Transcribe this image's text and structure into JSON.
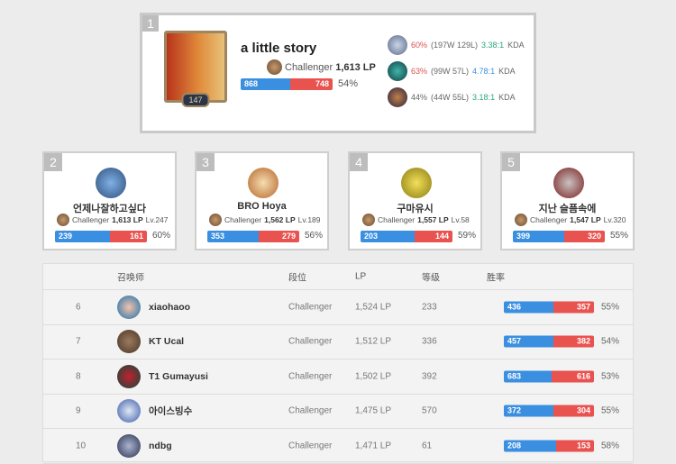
{
  "top": {
    "rank": "1",
    "name": "a little story",
    "level": "147",
    "tier": "Challenger",
    "lp": "1,613 LP",
    "wins": 868,
    "losses": 748,
    "winrate": "54%",
    "champions": [
      {
        "winrate": "60%",
        "record": "(197W 129L)",
        "kda": "3.38:1",
        "kda_label": "KDA",
        "wr_color": "#d9534f",
        "kda_color": "#2aa87a"
      },
      {
        "winrate": "63%",
        "record": "(99W 57L)",
        "kda": "4.78:1",
        "kda_label": "KDA",
        "wr_color": "#d9534f",
        "kda_color": "#3b8fe0"
      },
      {
        "winrate": "44%",
        "record": "(44W 55L)",
        "kda": "3.18:1",
        "kda_label": "KDA",
        "wr_color": "#666666",
        "kda_color": "#2aa87a"
      }
    ]
  },
  "cards": [
    {
      "rank": "2",
      "name": "언제나잘하고싶다",
      "tier": "Challenger",
      "lp": "1,613 LP",
      "level": "Lv.247",
      "wins": 239,
      "losses": 161,
      "winrate": "60%"
    },
    {
      "rank": "3",
      "name": "BRO Hoya",
      "tier": "Challenger",
      "lp": "1,562 LP",
      "level": "Lv.189",
      "wins": 353,
      "losses": 279,
      "winrate": "56%"
    },
    {
      "rank": "4",
      "name": "구마유시",
      "tier": "Challenger",
      "lp": "1,557 LP",
      "level": "Lv.58",
      "wins": 203,
      "losses": 144,
      "winrate": "59%"
    },
    {
      "rank": "5",
      "name": "지난 슬픔속에",
      "tier": "Challenger",
      "lp": "1,547 LP",
      "level": "Lv.320",
      "wins": 399,
      "losses": 320,
      "winrate": "55%"
    }
  ],
  "table": {
    "headers": {
      "summoner": "召唤师",
      "tier": "段位",
      "lp": "LP",
      "level": "等级",
      "winrate": "胜率"
    },
    "rows": [
      {
        "rank": "6",
        "name": "xiaohaoo",
        "tier": "Challenger",
        "lp": "1,524 LP",
        "level": "233",
        "wins": 436,
        "losses": 357,
        "winrate": "55%"
      },
      {
        "rank": "7",
        "name": "KT Ucal",
        "tier": "Challenger",
        "lp": "1,512 LP",
        "level": "336",
        "wins": 457,
        "losses": 382,
        "winrate": "54%"
      },
      {
        "rank": "8",
        "name": "T1 Gumayusi",
        "tier": "Challenger",
        "lp": "1,502 LP",
        "level": "392",
        "wins": 683,
        "losses": 616,
        "winrate": "53%"
      },
      {
        "rank": "9",
        "name": "아이스빙수",
        "tier": "Challenger",
        "lp": "1,475 LP",
        "level": "570",
        "wins": 372,
        "losses": 304,
        "winrate": "55%"
      },
      {
        "rank": "10",
        "name": "ndbg",
        "tier": "Challenger",
        "lp": "1,471 LP",
        "level": "61",
        "wins": 208,
        "losses": 153,
        "winrate": "58%"
      }
    ]
  },
  "colors": {
    "win": "#3b8fe0",
    "loss": "#e8524f"
  }
}
